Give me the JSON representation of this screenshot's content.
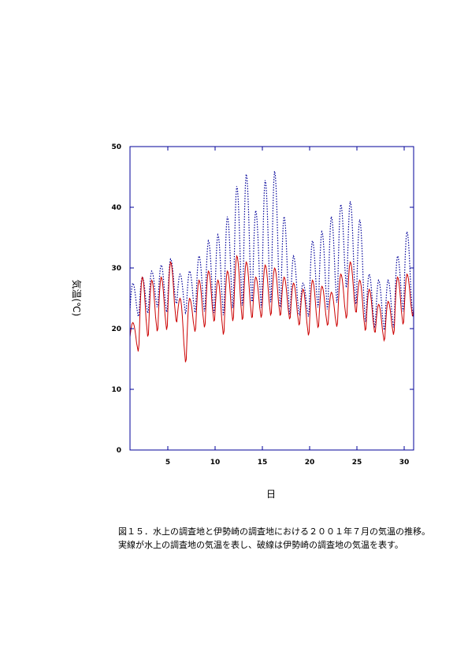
{
  "chart_data": {
    "type": "line",
    "xlabel": "日",
    "ylabel": "気温(℃)",
    "xlim": [
      1,
      31
    ],
    "ylim": [
      0,
      50
    ],
    "x_ticks": [
      5,
      10,
      15,
      20,
      25,
      30
    ],
    "y_ticks": [
      0,
      10,
      20,
      30,
      40,
      50
    ],
    "grid": false,
    "series": [
      {
        "style": "solid",
        "color": "#cc0000",
        "daily_min": [
          17.5,
          15.8,
          17.8,
          18.8,
          19.0,
          20.5,
          13.5,
          19.0,
          19.5,
          20.5,
          18.2,
          20.5,
          20.5,
          21.0,
          21.2,
          21.5,
          21.5,
          21.0,
          20.0,
          18.2,
          19.5,
          20.0,
          19.8,
          21.0,
          22.0,
          19.0,
          18.8,
          17.5,
          18.5,
          20.0,
          21.5
        ],
        "daily_max": [
          21.0,
          28.5,
          28.0,
          28.5,
          31.0,
          25.0,
          25.0,
          28.0,
          29.5,
          28.0,
          29.5,
          32.0,
          31.0,
          28.5,
          30.5,
          30.0,
          28.5,
          27.5,
          26.5,
          28.0,
          27.0,
          26.0,
          29.0,
          31.0,
          28.0,
          26.5,
          24.0,
          24.5,
          28.5,
          29.0,
          28.0
        ]
      },
      {
        "style": "dotted",
        "color": "#000099",
        "daily_min": [
          21.0,
          21.5,
          22.0,
          23.0,
          22.0,
          23.5,
          22.0,
          22.0,
          22.0,
          21.5,
          21.0,
          22.0,
          22.0,
          22.5,
          22.0,
          22.5,
          21.5,
          21.0,
          21.5,
          21.5,
          22.5,
          22.0,
          23.0,
          25.5,
          22.5,
          20.0,
          19.5,
          19.0,
          19.5,
          22.0,
          21.5
        ],
        "daily_max": [
          27.5,
          28.5,
          29.5,
          30.5,
          31.5,
          29.0,
          29.5,
          32.0,
          34.5,
          35.5,
          38.5,
          43.5,
          45.5,
          39.5,
          44.5,
          46.0,
          38.5,
          32.0,
          27.5,
          34.5,
          36.0,
          38.5,
          40.5,
          41.0,
          38.0,
          29.0,
          28.0,
          28.0,
          32.0,
          36.0,
          25.0
        ]
      }
    ]
  },
  "caption": "図１５．水上の調査地と伊勢崎の調査地における２００１年７月の気温の推移。実線が水上の調査地の気温を表し、破線は伊勢崎の調査地の気温を表す。"
}
